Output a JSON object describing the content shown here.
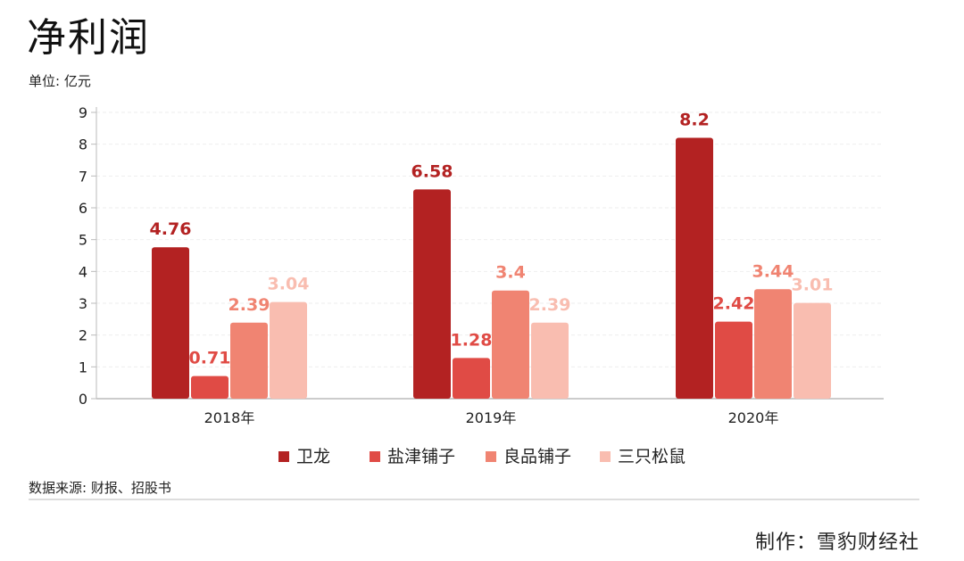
{
  "title": "净利润",
  "unit_label": "单位: 亿元",
  "source_label": "数据来源: 财报、招股书",
  "credit_label": "制作：雪豹财经社",
  "colors": {
    "weilong": "#b32222",
    "yanjin": "#e04b45",
    "liangpin": "#f08472",
    "sanzhi": "#f9bdb0",
    "axis": "#bbbbbb",
    "grid": "#eeeeee"
  },
  "chart_data": {
    "type": "bar",
    "title": "净利润",
    "ylabel": "单位: 亿元",
    "ylim": [
      0,
      9
    ],
    "yticks": [
      "0",
      "1",
      "2",
      "3",
      "4",
      "5",
      "6",
      "7",
      "8",
      "9"
    ],
    "grid": true,
    "legend_position": "bottom",
    "categories": [
      "2018年",
      "2019年",
      "2020年"
    ],
    "series": [
      {
        "name": "卫龙",
        "color_key": "weilong",
        "values": [
          4.76,
          6.58,
          8.2
        ],
        "labels": [
          "4.76",
          "6.58",
          "8.2"
        ]
      },
      {
        "name": "盐津铺子",
        "color_key": "yanjin",
        "values": [
          0.71,
          1.28,
          2.42
        ],
        "labels": [
          "0.71",
          "1.28",
          "2.42"
        ]
      },
      {
        "name": "良品铺子",
        "color_key": "liangpin",
        "values": [
          2.39,
          3.4,
          3.44
        ],
        "labels": [
          "2.39",
          "3.4",
          "3.44"
        ]
      },
      {
        "name": "三只松鼠",
        "color_key": "sanzhi",
        "values": [
          3.04,
          2.39,
          3.01
        ],
        "labels": [
          "3.04",
          "2.39",
          "3.01"
        ]
      }
    ]
  }
}
